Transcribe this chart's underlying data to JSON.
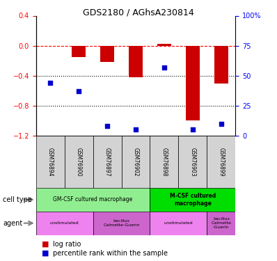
{
  "title": "GDS2180 / AGhsA230814",
  "samples": [
    "GSM76894",
    "GSM76900",
    "GSM76897",
    "GSM76902",
    "GSM76898",
    "GSM76903",
    "GSM76899"
  ],
  "log_ratio": [
    0.0,
    -0.15,
    -0.22,
    -0.42,
    0.02,
    -1.0,
    -0.5
  ],
  "percentile_rank": [
    44,
    37,
    8,
    5,
    57,
    5,
    10
  ],
  "ylim_left": [
    -1.2,
    0.4
  ],
  "ylim_right": [
    0,
    100
  ],
  "yticks_left": [
    0.4,
    0,
    -0.4,
    -0.8,
    -1.2
  ],
  "yticks_right": [
    100,
    75,
    50,
    25,
    0
  ],
  "hline_y": 0,
  "dotted_lines": [
    -0.4,
    -0.8
  ],
  "bar_color": "#cc0000",
  "dot_color": "#0000cc",
  "cell_type_row": {
    "GM-CSF": {
      "label": "GM-CSF cultured macrophage",
      "span": [
        0,
        4
      ],
      "color": "#90ee90"
    },
    "M-CSF": {
      "label": "M-CSF cultured\nmacrophage",
      "span": [
        4,
        7
      ],
      "color": "#00cc00"
    }
  },
  "agent_row": {
    "unstim1": {
      "label": "unstimulated",
      "span": [
        0,
        2
      ],
      "color": "#ee82ee"
    },
    "bcg1": {
      "label": "bacillus\nCalmette-Guerin",
      "span": [
        2,
        4
      ],
      "color": "#dd77dd"
    },
    "unstim2": {
      "label": "unstimulated",
      "span": [
        4,
        6
      ],
      "color": "#ee82ee"
    },
    "bcg2": {
      "label": "bacillus\nCalmette\n-Guerin",
      "span": [
        6,
        7
      ],
      "color": "#dd77dd"
    }
  },
  "row_label_cell_type": "cell type",
  "row_label_agent": "agent",
  "legend_items": [
    "log ratio",
    "percentile rank within the sample"
  ],
  "background_color": "#ffffff",
  "tick_area_color": "#d3d3d3"
}
